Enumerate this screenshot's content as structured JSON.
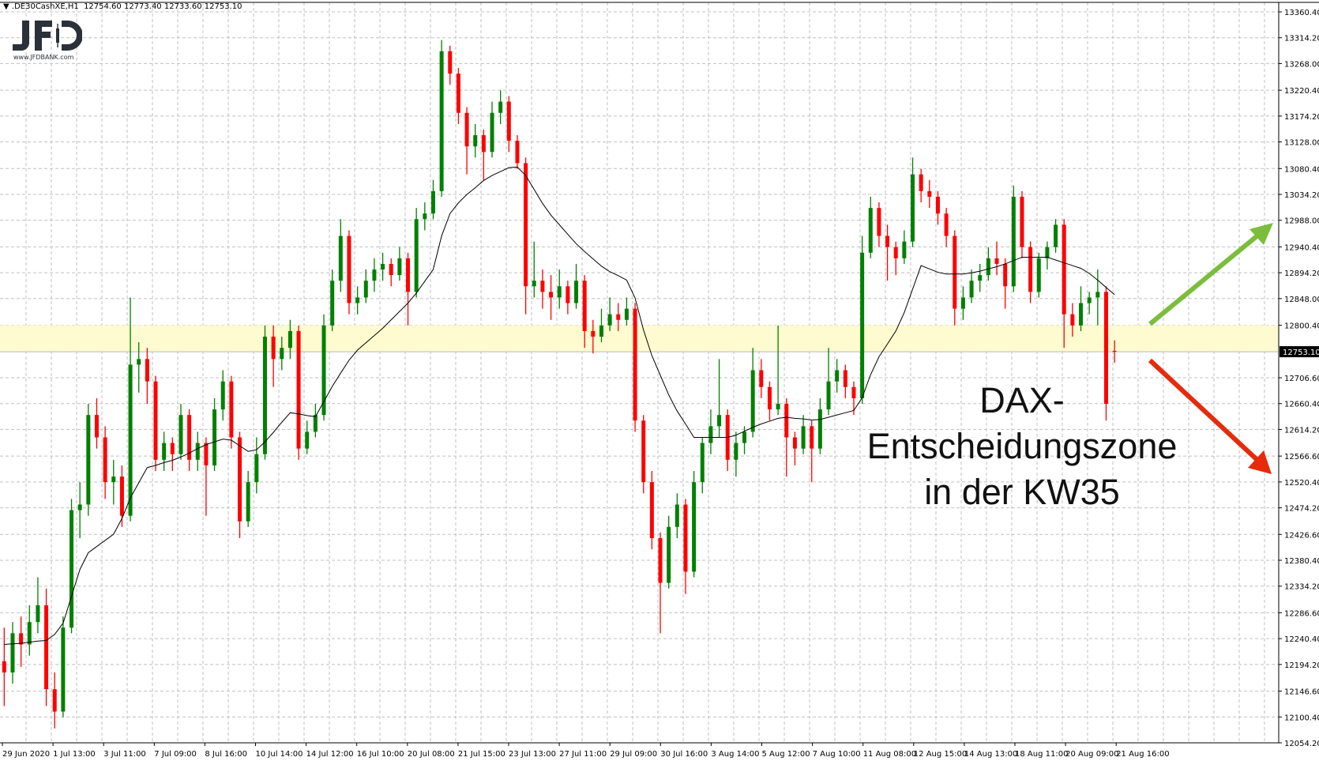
{
  "header": {
    "arrow_icon": "triangle-down-icon",
    "symbol": ".DE30CashXE,H1",
    "ohlc": "12754.60 12773.40 12733.60 12753.10"
  },
  "logo": {
    "text": "JFD",
    "url_text": "www.JFDBANK.com"
  },
  "annotation": {
    "line1": "DAX-",
    "line2": "Entscheidungszone",
    "line3": "in der KW35"
  },
  "colors": {
    "bull": "#008000",
    "bear": "#ff0000",
    "ma": "#000000",
    "zone": "#fdfbcf",
    "arrow_up": "#7cbd3c",
    "arrow_down": "#e52b0c",
    "grid": "#c0c0c0"
  },
  "chart_data": {
    "type": "candlestick",
    "title": "",
    "ylim": [
      12054.2,
      13360.4
    ],
    "grid": true,
    "y_ticks": [
      "13360.40",
      "13314.20",
      "13268.00",
      "13220.40",
      "13174.20",
      "13128.00",
      "13080.40",
      "13034.20",
      "12988.00",
      "12940.40",
      "12894.20",
      "12848.00",
      "12800.40",
      "12706.60",
      "12660.40",
      "12614.20",
      "12566.60",
      "12520.40",
      "12474.20",
      "12426.60",
      "12380.40",
      "12334.20",
      "12286.60",
      "12240.40",
      "12194.20",
      "12146.60",
      "12100.40",
      "12054.20"
    ],
    "y_tick_values": [
      13360.4,
      13314.2,
      13268.0,
      13220.4,
      13174.2,
      13128.0,
      13080.4,
      13034.2,
      12988.0,
      12940.4,
      12894.2,
      12848.0,
      12800.4,
      12706.6,
      12660.4,
      12614.2,
      12566.6,
      12520.4,
      12474.2,
      12426.6,
      12380.4,
      12334.2,
      12286.6,
      12240.4,
      12194.2,
      12146.6,
      12100.4,
      12054.2
    ],
    "current_price": {
      "label": "12753.10",
      "value": 12753.1
    },
    "x_ticks": [
      "29 Jun 2020",
      "1 Jul 13:00",
      "3 Jul 11:00",
      "7 Jul 09:00",
      "8 Jul 16:00",
      "10 Jul 14:00",
      "14 Jul 12:00",
      "16 Jul 10:00",
      "20 Jul 08:00",
      "21 Jul 15:00",
      "23 Jul 13:00",
      "27 Jul 11:00",
      "29 Jul 09:00",
      "30 Jul 16:00",
      "3 Aug 14:00",
      "5 Aug 12:00",
      "7 Aug 10:00",
      "11 Aug 08:00",
      "12 Aug 15:00",
      "14 Aug 13:00",
      "18 Aug 11:00",
      "20 Aug 09:00",
      "21 Aug 16:00"
    ],
    "zone": {
      "from": 12753.1,
      "to": 12800.4
    },
    "candles_ohlc": [
      [
        12200,
        12260,
        12120,
        12180
      ],
      [
        12180,
        12270,
        12160,
        12250
      ],
      [
        12250,
        12280,
        12190,
        12230
      ],
      [
        12230,
        12300,
        12210,
        12270
      ],
      [
        12270,
        12350,
        12250,
        12300
      ],
      [
        12300,
        12330,
        12120,
        12150
      ],
      [
        12150,
        12180,
        12080,
        12110
      ],
      [
        12110,
        12280,
        12100,
        12260
      ],
      [
        12260,
        12490,
        12250,
        12470
      ],
      [
        12470,
        12520,
        12420,
        12480
      ],
      [
        12480,
        12660,
        12460,
        12640
      ],
      [
        12640,
        12670,
        12580,
        12600
      ],
      [
        12600,
        12620,
        12490,
        12520
      ],
      [
        12520,
        12560,
        12480,
        12530
      ],
      [
        12530,
        12550,
        12440,
        12460
      ],
      [
        12460,
        12850,
        12450,
        12730
      ],
      [
        12730,
        12770,
        12680,
        12740
      ],
      [
        12740,
        12760,
        12660,
        12700
      ],
      [
        12700,
        12710,
        12540,
        12560
      ],
      [
        12560,
        12610,
        12540,
        12590
      ],
      [
        12590,
        12600,
        12540,
        12570
      ],
      [
        12570,
        12660,
        12560,
        12640
      ],
      [
        12640,
        12650,
        12540,
        12560
      ],
      [
        12560,
        12610,
        12540,
        12590
      ],
      [
        12590,
        12600,
        12460,
        12550
      ],
      [
        12550,
        12670,
        12540,
        12650
      ],
      [
        12650,
        12720,
        12630,
        12700
      ],
      [
        12700,
        12710,
        12580,
        12600
      ],
      [
        12600,
        12610,
        12420,
        12450
      ],
      [
        12450,
        12540,
        12440,
        12520
      ],
      [
        12520,
        12600,
        12500,
        12570
      ],
      [
        12570,
        12800,
        12560,
        12780
      ],
      [
        12780,
        12800,
        12690,
        12740
      ],
      [
        12740,
        12780,
        12720,
        12760
      ],
      [
        12760,
        12810,
        12740,
        12790
      ],
      [
        12790,
        12800,
        12560,
        12580
      ],
      [
        12580,
        12630,
        12570,
        12610
      ],
      [
        12610,
        12660,
        12600,
        12640
      ],
      [
        12640,
        12820,
        12630,
        12800
      ],
      [
        12800,
        12900,
        12790,
        12880
      ],
      [
        12880,
        12990,
        12860,
        12960
      ],
      [
        12960,
        12970,
        12820,
        12840
      ],
      [
        12840,
        12870,
        12820,
        12850
      ],
      [
        12850,
        12900,
        12840,
        12880
      ],
      [
        12880,
        12920,
        12860,
        12900
      ],
      [
        12900,
        12930,
        12880,
        12910
      ],
      [
        12910,
        12920,
        12870,
        12890
      ],
      [
        12890,
        12940,
        12880,
        12920
      ],
      [
        12920,
        12930,
        12800,
        12860
      ],
      [
        12860,
        13010,
        12850,
        12990
      ],
      [
        12990,
        13020,
        12970,
        13000
      ],
      [
        13000,
        13060,
        12990,
        13040
      ],
      [
        13040,
        13310,
        13030,
        13290
      ],
      [
        13290,
        13300,
        13230,
        13250
      ],
      [
        13250,
        13260,
        13160,
        13180
      ],
      [
        13180,
        13190,
        13070,
        13120
      ],
      [
        13120,
        13160,
        13100,
        13140
      ],
      [
        13140,
        13150,
        13060,
        13110
      ],
      [
        13110,
        13200,
        13100,
        13180
      ],
      [
        13180,
        13220,
        13160,
        13200
      ],
      [
        13200,
        13210,
        13110,
        13130
      ],
      [
        13130,
        13140,
        13080,
        13090
      ],
      [
        13090,
        13100,
        12820,
        12870
      ],
      [
        12870,
        12950,
        12850,
        12880
      ],
      [
        12880,
        12900,
        12830,
        12860
      ],
      [
        12860,
        12890,
        12810,
        12850
      ],
      [
        12850,
        12900,
        12830,
        12870
      ],
      [
        12870,
        12880,
        12820,
        12840
      ],
      [
        12840,
        12910,
        12830,
        12880
      ],
      [
        12880,
        12890,
        12760,
        12790
      ],
      [
        12790,
        12810,
        12750,
        12780
      ],
      [
        12780,
        12830,
        12770,
        12800
      ],
      [
        12800,
        12850,
        12790,
        12820
      ],
      [
        12820,
        12840,
        12790,
        12810
      ],
      [
        12810,
        12850,
        12800,
        12830
      ],
      [
        12830,
        12840,
        12610,
        12630
      ],
      [
        12630,
        12640,
        12500,
        12520
      ],
      [
        12520,
        12540,
        12400,
        12420
      ],
      [
        12420,
        12430,
        12250,
        12340
      ],
      [
        12340,
        12460,
        12330,
        12440
      ],
      [
        12440,
        12500,
        12420,
        12480
      ],
      [
        12480,
        12490,
        12320,
        12360
      ],
      [
        12360,
        12540,
        12350,
        12520
      ],
      [
        12520,
        12600,
        12500,
        12590
      ],
      [
        12590,
        12650,
        12570,
        12620
      ],
      [
        12620,
        12740,
        12600,
        12640
      ],
      [
        12640,
        12650,
        12540,
        12560
      ],
      [
        12560,
        12610,
        12530,
        12590
      ],
      [
        12590,
        12620,
        12570,
        12610
      ],
      [
        12610,
        12760,
        12600,
        12720
      ],
      [
        12720,
        12740,
        12670,
        12690
      ],
      [
        12690,
        12700,
        12630,
        12650
      ],
      [
        12650,
        12800,
        12640,
        12660
      ],
      [
        12660,
        12670,
        12530,
        12600
      ],
      [
        12600,
        12610,
        12550,
        12580
      ],
      [
        12580,
        12640,
        12570,
        12620
      ],
      [
        12620,
        12630,
        12520,
        12580
      ],
      [
        12580,
        12670,
        12570,
        12650
      ],
      [
        12650,
        12760,
        12640,
        12700
      ],
      [
        12700,
        12740,
        12680,
        12720
      ],
      [
        12720,
        12730,
        12670,
        12690
      ],
      [
        12690,
        12700,
        12640,
        12670
      ],
      [
        12670,
        12960,
        12660,
        12930
      ],
      [
        12930,
        13030,
        12920,
        13010
      ],
      [
        13010,
        13020,
        12940,
        12960
      ],
      [
        12960,
        12980,
        12880,
        12940
      ],
      [
        12940,
        12950,
        12890,
        12920
      ],
      [
        12920,
        12970,
        12910,
        12950
      ],
      [
        12950,
        13100,
        12940,
        13070
      ],
      [
        13070,
        13080,
        13020,
        13040
      ],
      [
        13040,
        13060,
        13010,
        13030
      ],
      [
        13030,
        13040,
        12980,
        13000
      ],
      [
        13000,
        13010,
        12940,
        12960
      ],
      [
        12960,
        12970,
        12800,
        12830
      ],
      [
        12830,
        12870,
        12810,
        12850
      ],
      [
        12850,
        12900,
        12840,
        12880
      ],
      [
        12880,
        12910,
        12860,
        12890
      ],
      [
        12890,
        12940,
        12880,
        12920
      ],
      [
        12920,
        12950,
        12890,
        12910
      ],
      [
        12910,
        12920,
        12830,
        12870
      ],
      [
        12870,
        13050,
        12860,
        13030
      ],
      [
        13030,
        13040,
        12920,
        12940
      ],
      [
        12940,
        12950,
        12840,
        12860
      ],
      [
        12860,
        12930,
        12850,
        12920
      ],
      [
        12920,
        12950,
        12900,
        12940
      ],
      [
        12940,
        12990,
        12930,
        12980
      ],
      [
        12980,
        12990,
        12760,
        12820
      ],
      [
        12820,
        12840,
        12780,
        12800
      ],
      [
        12800,
        12870,
        12790,
        12840
      ],
      [
        12840,
        12860,
        12820,
        12850
      ],
      [
        12850,
        12900,
        12800,
        12860
      ],
      [
        12860,
        12870,
        12630,
        12660
      ],
      [
        12754.6,
        12773.4,
        12733.6,
        12753.1
      ]
    ],
    "moving_average": [
      12230,
      12231,
      12232,
      12234,
      12236,
      12237,
      12248,
      12268,
      12316,
      12364,
      12394,
      12405,
      12416,
      12427,
      12455,
      12492,
      12519,
      12546,
      12550,
      12555,
      12559,
      12565,
      12572,
      12580,
      12587,
      12592,
      12597,
      12595,
      12585,
      12575,
      12578,
      12592,
      12609,
      12627,
      12644,
      12642,
      12639,
      12637,
      12664,
      12691,
      12715,
      12738,
      12756,
      12769,
      12782,
      12795,
      12810,
      12825,
      12840,
      12858,
      12879,
      12900,
      12960,
      13000,
      13019,
      13034,
      13046,
      13059,
      13068,
      13075,
      13082,
      13083,
      13068,
      13043,
      13018,
      12997,
      12980,
      12963,
      12946,
      12932,
      12919,
      12906,
      12896,
      12889,
      12881,
      12849,
      12792,
      12746,
      12711,
      12676,
      12647,
      12624,
      12600,
      12600,
      12600,
      12600,
      12600,
      12604,
      12611,
      12618,
      12624,
      12629,
      12634,
      12636,
      12634,
      12633,
      12631,
      12632,
      12636,
      12640,
      12644,
      12648,
      12671,
      12712,
      12744,
      12767,
      12790,
      12823,
      12865,
      12907,
      12901,
      12895,
      12892,
      12892,
      12892,
      12894,
      12897,
      12901,
      12905,
      12910,
      12916,
      12922,
      12922,
      12922,
      12922,
      12917,
      12912,
      12907,
      12902,
      12893,
      12881,
      12868,
      12855
    ]
  }
}
